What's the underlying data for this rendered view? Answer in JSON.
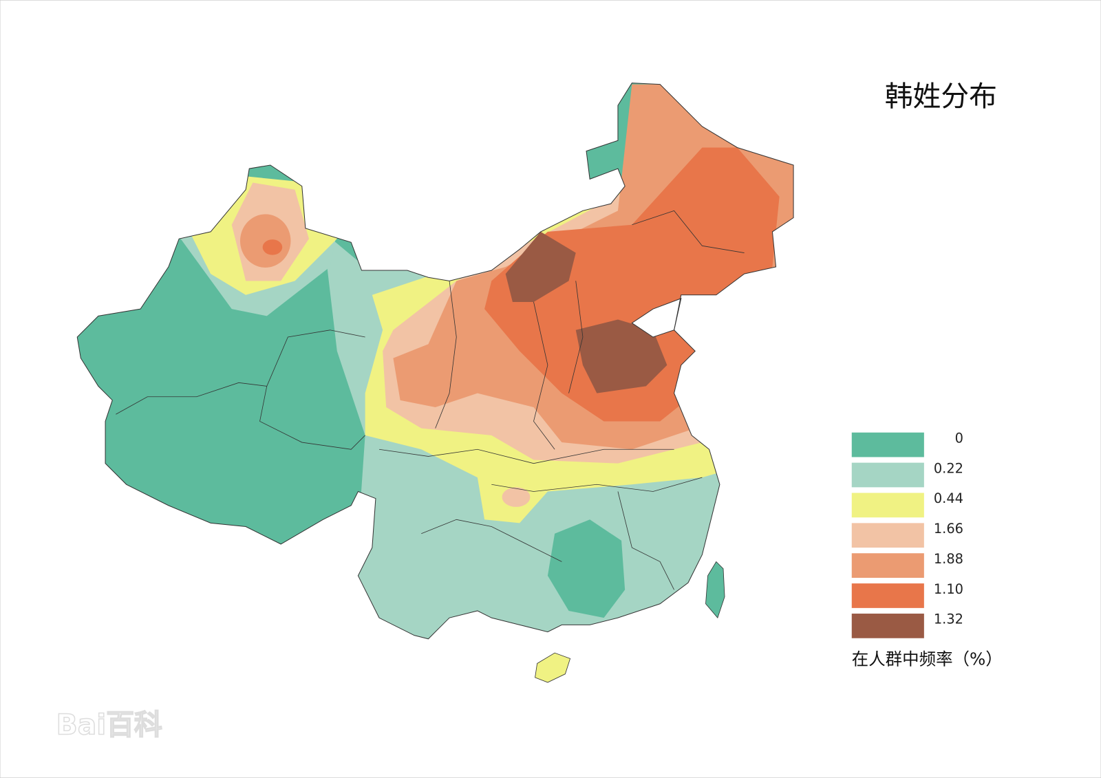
{
  "title": "韩姓分布",
  "legend": {
    "items": [
      {
        "label": "0",
        "color": "#5dbb9d"
      },
      {
        "label": "0.22",
        "color": "#a5d5c4"
      },
      {
        "label": "0.44",
        "color": "#f0f283"
      },
      {
        "label": "1.66",
        "color": "#f2c3a5"
      },
      {
        "label": "1.88",
        "color": "#eb9b72"
      },
      {
        "label": "1.10",
        "color": "#e8764a"
      },
      {
        "label": "1.32",
        "color": "#9a5a44"
      }
    ],
    "caption": "在人群中频率（%）"
  },
  "watermark": {
    "text": "Bai百科"
  }
}
